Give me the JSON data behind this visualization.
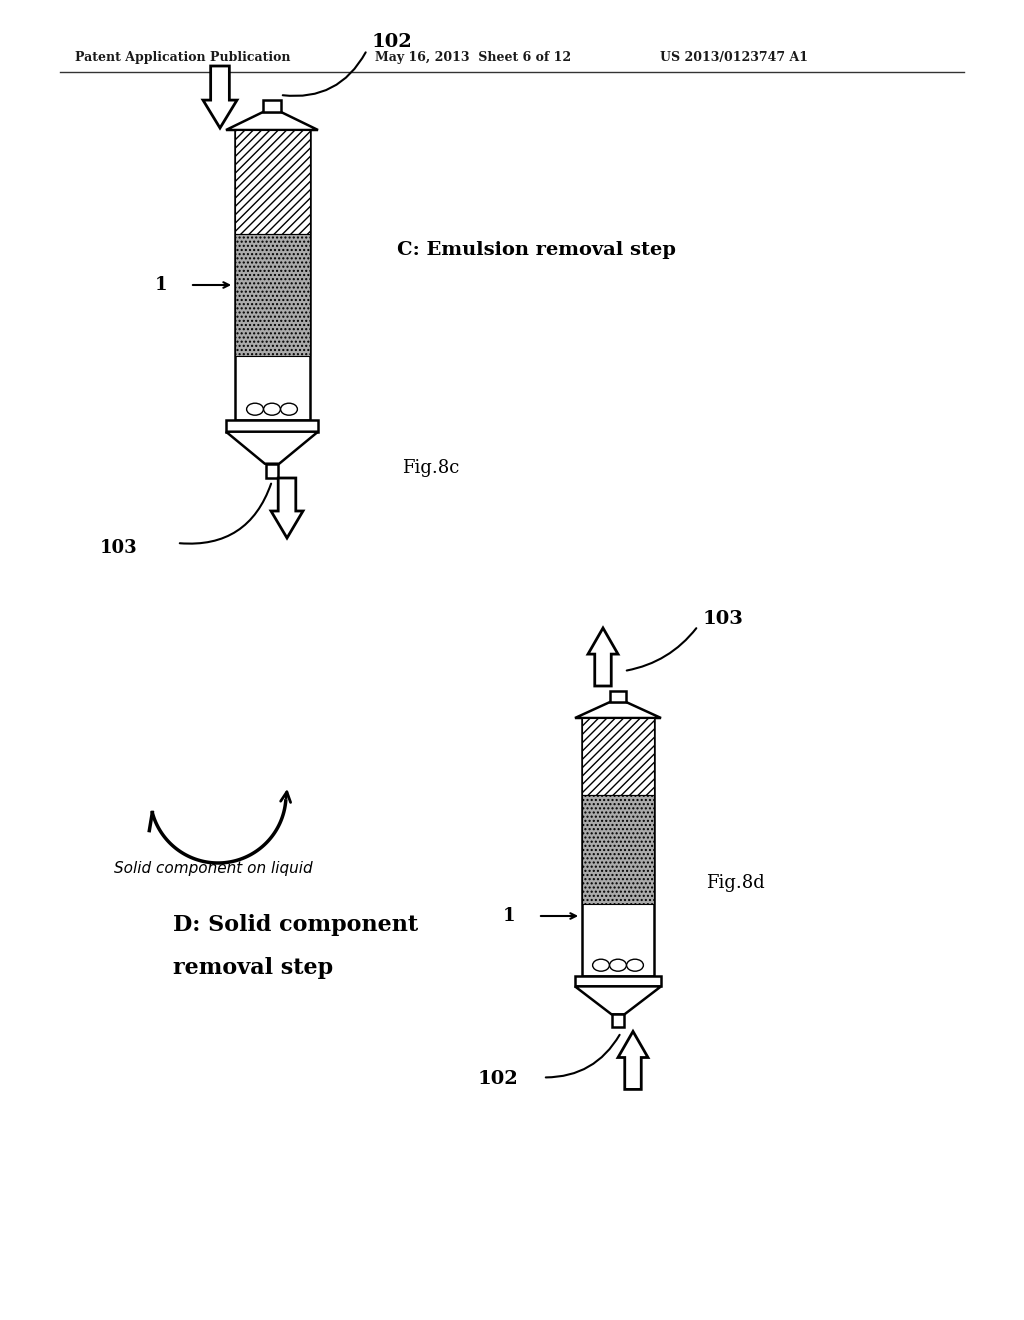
{
  "header_left": "Patent Application Publication",
  "header_mid": "May 16, 2013  Sheet 6 of 12",
  "header_right": "US 2013/0123747 A1",
  "fig_c_label": "C: Emulsion removal step",
  "fig_d_label1": "D: Solid component",
  "fig_d_label2": "removal step",
  "fig8c": "Fig.8c",
  "fig8d": "Fig.8d",
  "solid_label": "Solid component on liquid",
  "bg_color": "#ffffff",
  "fg_color": "#000000",
  "hatch_color": "#000000",
  "gray_fill": "#b0b0b0",
  "light_gray": "#d0d0d0"
}
